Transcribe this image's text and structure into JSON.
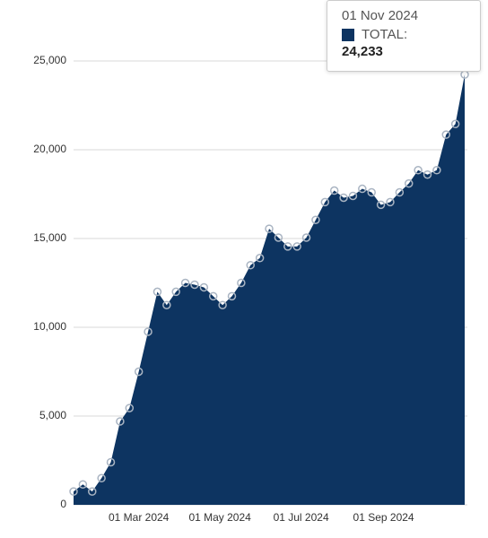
{
  "chart_data": {
    "type": "area",
    "x": [
      "2024-01-12",
      "2024-01-19",
      "2024-01-26",
      "2024-02-02",
      "2024-02-09",
      "2024-02-16",
      "2024-02-23",
      "2024-03-01",
      "2024-03-08",
      "2024-03-15",
      "2024-03-22",
      "2024-03-29",
      "2024-04-05",
      "2024-04-12",
      "2024-04-19",
      "2024-04-26",
      "2024-05-03",
      "2024-05-10",
      "2024-05-17",
      "2024-05-24",
      "2024-05-31",
      "2024-06-07",
      "2024-06-14",
      "2024-06-21",
      "2024-06-28",
      "2024-07-05",
      "2024-07-12",
      "2024-07-19",
      "2024-07-26",
      "2024-08-02",
      "2024-08-09",
      "2024-08-16",
      "2024-08-23",
      "2024-08-30",
      "2024-09-06",
      "2024-09-13",
      "2024-09-20",
      "2024-09-27",
      "2024-10-04",
      "2024-10-11",
      "2024-10-18",
      "2024-10-25",
      "2024-11-01"
    ],
    "values": [
      750,
      1150,
      750,
      1500,
      2400,
      4700,
      5450,
      7500,
      9750,
      12000,
      11250,
      12000,
      12500,
      12400,
      12250,
      11750,
      11250,
      11750,
      12500,
      13500,
      13900,
      15550,
      15050,
      14550,
      14550,
      15050,
      16050,
      17050,
      17700,
      17300,
      17400,
      17800,
      17600,
      16900,
      17050,
      17600,
      18100,
      18850,
      18600,
      18850,
      20850,
      21450,
      24233
    ],
    "color": "#0d3461",
    "xlim": [
      "2024-01-12",
      "2024-11-03"
    ],
    "xticks": [
      {
        "value": "2024-03-01",
        "label": "01 Mar 2024"
      },
      {
        "value": "2024-05-01",
        "label": "01 May 2024"
      },
      {
        "value": "2024-07-01",
        "label": "01 Jul 2024"
      },
      {
        "value": "2024-09-01",
        "label": "01 Sep 2024"
      }
    ],
    "ylim": [
      0,
      25000
    ],
    "yticks": [
      0,
      {
        "value": 5000,
        "label": "5,000"
      },
      {
        "value": 10000,
        "label": "10,000"
      },
      {
        "value": 15000,
        "label": "15,000"
      },
      {
        "value": 20000,
        "label": "20,000"
      },
      {
        "value": 25000,
        "label": "25,000"
      }
    ],
    "grid": true,
    "tooltip": {
      "title": "01 Nov 2024",
      "series_label": "TOTAL:",
      "value_label": "24,233"
    }
  }
}
